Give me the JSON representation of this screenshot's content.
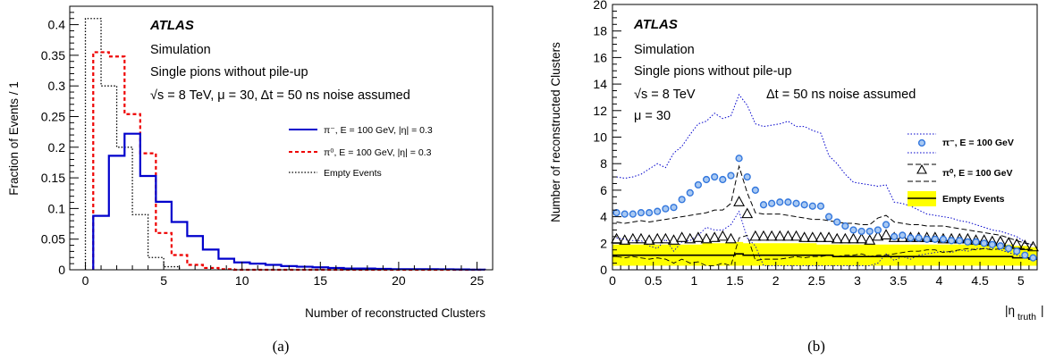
{
  "colors": {
    "pi_minus": "#0000cc",
    "pi_zero": "#ee0000",
    "empty": "#000000",
    "band": "#ffff00",
    "marker": "#3377dd"
  },
  "chart_data": [
    {
      "type": "histogram",
      "caption": "(a)",
      "ylabel": "Fraction of Events / 1",
      "xlabel": "Number of reconstructed Clusters",
      "xlim": [
        -1,
        26
      ],
      "ylim": [
        0,
        0.43
      ],
      "x_ticks": [
        "0",
        "5",
        "10",
        "15",
        "20",
        "25"
      ],
      "y_ticks": [
        "0",
        "0.05",
        "0.1",
        "0.15",
        "0.2",
        "0.25",
        "0.3",
        "0.35",
        "0.4"
      ],
      "annotations": {
        "atlas": "ATLAS",
        "line1": "Simulation",
        "line2": "Single pions without pile-up",
        "line3": "√s = 8 TeV,  μ = 30,  Δt = 50 ns noise assumed"
      },
      "legend": {
        "pi_minus": "π⁻, E = 100 GeV, |η| = 0.3",
        "pi_zero": "π⁰, E = 100 GeV, |η| = 0.3",
        "empty": "Empty Events"
      },
      "bin_low_edges": [
        0.5,
        1.5,
        2.5,
        3.5,
        4.5,
        5.5,
        6.5,
        7.5,
        8.5,
        9.5,
        10.5,
        11.5,
        12.5,
        13.5,
        14.5,
        15.5,
        16.5,
        17.5,
        18.5,
        19.5,
        20.5,
        21.5,
        22.5,
        23.5,
        24.5
      ],
      "series": [
        {
          "name": "π⁻, E = 100 GeV, |η| = 0.3",
          "style": "solid",
          "values": [
            0.088,
            0.186,
            0.222,
            0.153,
            0.111,
            0.078,
            0.055,
            0.033,
            0.018,
            0.012,
            0.01,
            0.008,
            0.006,
            0.005,
            0.004,
            0.003,
            0.002,
            0.002,
            0.0015,
            0.001,
            0.001,
            0.001,
            0.0008,
            0.0005,
            0.0003
          ]
        },
        {
          "name": "π⁰, E = 100 GeV, |η| = 0.3",
          "style": "dashed",
          "values": [
            0.355,
            0.348,
            0.254,
            0.19,
            0.06,
            0.024,
            0.008,
            0.003,
            0.001,
            0,
            0,
            0,
            0,
            0,
            0,
            0,
            0,
            0,
            0,
            0,
            0,
            0,
            0,
            0,
            0
          ]
        },
        {
          "name": "Empty Events",
          "style": "dotted",
          "start": 0,
          "values": [
            0.41,
            0.3,
            0.2,
            0.09,
            0.02,
            0.005
          ]
        }
      ]
    },
    {
      "type": "line+scatter",
      "caption": "(b)",
      "ylabel": "Number of reconstructed Clusters",
      "xlabel": "|η_truth|",
      "xlabel_main": "|η",
      "xlabel_sub": "truth",
      "xlim": [
        0,
        5.2
      ],
      "ylim": [
        0,
        20
      ],
      "x_ticks": [
        "0",
        "0.5",
        "1",
        "1.5",
        "2",
        "2.5",
        "3",
        "3.5",
        "4",
        "4.5",
        "5"
      ],
      "y_ticks": [
        "0",
        "2",
        "4",
        "6",
        "8",
        "10",
        "12",
        "14",
        "16",
        "18",
        "20"
      ],
      "annotations": {
        "atlas": "ATLAS",
        "line1": "Simulation",
        "line2": "Single pions without pile-up",
        "line3a": "√s = 8 TeV",
        "line3b": "Δt = 50 ns noise assumed",
        "line4": "μ = 30"
      },
      "legend": {
        "pi_minus": "π⁻, E = 100 GeV",
        "pi_zero": "π⁰, E = 100 GeV",
        "empty": "Empty Events"
      },
      "eta": [
        0.05,
        0.15,
        0.25,
        0.35,
        0.45,
        0.55,
        0.65,
        0.75,
        0.85,
        0.95,
        1.05,
        1.15,
        1.25,
        1.35,
        1.45,
        1.55,
        1.65,
        1.75,
        1.85,
        1.95,
        2.05,
        2.15,
        2.25,
        2.35,
        2.45,
        2.55,
        2.65,
        2.75,
        2.85,
        2.95,
        3.05,
        3.15,
        3.25,
        3.35,
        3.45,
        3.55,
        3.65,
        3.75,
        3.85,
        3.95,
        4.05,
        4.15,
        4.25,
        4.35,
        4.45,
        4.55,
        4.65,
        4.75,
        4.85,
        4.95,
        5.05,
        5.15
      ],
      "pi_minus_mean": [
        4.3,
        4.2,
        4.2,
        4.3,
        4.3,
        4.4,
        4.6,
        4.7,
        5.3,
        5.8,
        6.4,
        6.8,
        7.0,
        6.8,
        7.1,
        8.4,
        7.0,
        6.0,
        4.9,
        5.0,
        5.1,
        5.1,
        5.0,
        4.9,
        4.8,
        4.8,
        4.0,
        3.6,
        3.3,
        3.0,
        2.9,
        2.9,
        3.0,
        3.4,
        2.5,
        2.6,
        2.4,
        2.4,
        2.3,
        2.3,
        2.3,
        2.2,
        2.2,
        2.1,
        2.1,
        2.0,
        1.9,
        1.8,
        1.6,
        1.4,
        1.1,
        0.9
      ],
      "pi_minus_upper": [
        7.0,
        6.9,
        7.0,
        7.2,
        7.6,
        8.0,
        7.7,
        8.8,
        9.3,
        10.2,
        11.0,
        11.2,
        11.8,
        11.4,
        11.6,
        13.2,
        12.4,
        11.0,
        10.8,
        10.9,
        11.0,
        11.2,
        10.8,
        10.8,
        10.5,
        10.3,
        8.6,
        8.0,
        7.2,
        6.6,
        6.5,
        6.4,
        6.3,
        6.4,
        5.1,
        5.0,
        4.8,
        4.5,
        4.2,
        4.1,
        4.0,
        3.9,
        3.7,
        3.6,
        3.4,
        3.2,
        3.0,
        2.9,
        2.7,
        2.5,
        2.1,
        1.8
      ],
      "pi_zero_mean": [
        2.3,
        2.2,
        2.3,
        2.3,
        2.2,
        2.3,
        2.3,
        2.2,
        2.4,
        2.3,
        2.4,
        2.3,
        2.4,
        2.5,
        2.3,
        5.1,
        4.2,
        2.5,
        2.5,
        2.5,
        2.5,
        2.5,
        2.5,
        2.4,
        2.4,
        2.4,
        2.4,
        2.3,
        2.3,
        2.3,
        2.3,
        2.2,
        2.5,
        2.6,
        2.4,
        2.4,
        2.4,
        2.4,
        2.4,
        2.4,
        2.3,
        2.3,
        2.3,
        2.3,
        2.2,
        2.2,
        2.1,
        2.1,
        2.0,
        1.9,
        1.8,
        1.7
      ],
      "pi_zero_upper": [
        3.6,
        3.5,
        3.6,
        3.7,
        3.6,
        3.7,
        3.8,
        3.9,
        4.0,
        4.1,
        4.2,
        4.3,
        4.5,
        4.5,
        5.0,
        7.8,
        5.8,
        4.3,
        4.2,
        4.2,
        4.2,
        4.1,
        4.0,
        3.9,
        3.8,
        3.8,
        3.7,
        3.6,
        3.5,
        3.5,
        3.4,
        3.4,
        3.9,
        4.1,
        3.6,
        3.5,
        3.4,
        3.4,
        3.3,
        3.3,
        3.3,
        3.2,
        3.1,
        3.0,
        2.9,
        2.8,
        2.7,
        2.6,
        2.4,
        2.2,
        2.0,
        1.9
      ],
      "empty_mean": [
        1.1,
        1.1,
        1.1,
        1.1,
        1.1,
        1.1,
        1.1,
        1.1,
        1.1,
        1.1,
        1.1,
        1.1,
        1.1,
        1.1,
        1.1,
        1.2,
        1.1,
        1.1,
        1.1,
        1.1,
        1.1,
        1.1,
        1.1,
        1.1,
        1.1,
        1.1,
        1.1,
        1.0,
        1.0,
        1.0,
        1.0,
        1.0,
        1.0,
        1.0,
        1.0,
        1.0,
        1.0,
        1.0,
        1.0,
        1.0,
        1.0,
        1.0,
        1.0,
        1.0,
        1.0,
        1.0,
        1.0,
        1.0,
        1.0,
        0.9,
        0.9,
        0.8
      ],
      "empty_band_low": [
        0.3,
        0.3,
        0.3,
        0.3,
        0.3,
        0.3,
        0.3,
        0.3,
        0.3,
        0.3,
        0.3,
        0.3,
        0.3,
        0.3,
        0.3,
        0.3,
        0.3,
        0.3,
        0.3,
        0.3,
        0.3,
        0.3,
        0.3,
        0.3,
        0.3,
        0.3,
        0.3,
        0.3,
        0.3,
        0.3,
        0.3,
        0.3,
        0.3,
        0.3,
        0.3,
        0.3,
        0.3,
        0.3,
        0.3,
        0.3,
        0.3,
        0.3,
        0.3,
        0.3,
        0.3,
        0.3,
        0.3,
        0.3,
        0.3,
        0.3,
        0.3,
        0.3
      ],
      "empty_band_high": [
        1.9,
        1.9,
        1.9,
        1.9,
        1.9,
        1.9,
        1.9,
        1.9,
        1.9,
        1.9,
        1.9,
        2.0,
        2.0,
        2.0,
        2.0,
        2.1,
        2.0,
        2.0,
        2.0,
        2.0,
        2.0,
        2.0,
        2.0,
        2.0,
        2.0,
        1.9,
        1.9,
        1.9,
        1.9,
        1.9,
        1.9,
        1.9,
        1.9,
        1.9,
        1.9,
        1.9,
        1.9,
        1.9,
        1.9,
        1.9,
        1.9,
        1.9,
        1.9,
        1.9,
        1.9,
        1.9,
        1.9,
        1.9,
        1.9,
        1.8,
        1.8,
        1.7
      ]
    }
  ]
}
